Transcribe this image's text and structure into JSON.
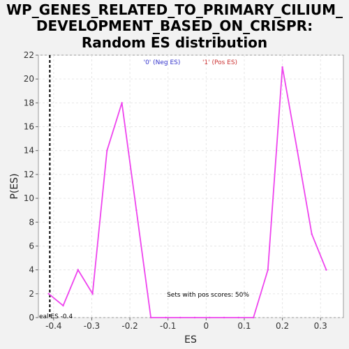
{
  "chart_data": {
    "type": "line",
    "title_lines": [
      "WP_GENES_RELATED_TO_PRIMARY_CILIUM_",
      "DEVELOPMENT_BASED_ON_CRISPR:",
      "Random ES distribution"
    ],
    "xlabel": "ES",
    "ylabel": "P(ES)",
    "xlim": [
      -0.44,
      0.36
    ],
    "ylim": [
      0,
      22
    ],
    "x_ticks": [
      -0.4,
      -0.3,
      -0.2,
      -0.1,
      0.0,
      0.1,
      0.2,
      0.3
    ],
    "x_tick_labels": [
      "-0.4",
      "-0.3",
      "-0.2",
      "-0.1",
      "0",
      "0.1",
      "0.2",
      "0.3"
    ],
    "y_ticks": [
      0,
      2,
      4,
      6,
      8,
      10,
      12,
      14,
      16,
      18,
      20,
      22
    ],
    "y_tick_labels": [
      "0",
      "2",
      "4",
      "6",
      "8",
      "10",
      "12",
      "14",
      "16",
      "18",
      "20",
      "22"
    ],
    "grid": true,
    "legend": [
      {
        "label": "'0' (Neg ES)",
        "color": "#3333cc"
      },
      {
        "label": "'1' (Pos ES)",
        "color": "#cc3333"
      }
    ],
    "series": [
      {
        "color": "#ee44ee",
        "x": [
          -0.413,
          -0.375,
          -0.336,
          -0.298,
          -0.26,
          -0.221,
          -0.183,
          -0.145,
          -0.106,
          -0.068,
          -0.03,
          0.009,
          0.047,
          0.085,
          0.124,
          0.162,
          0.2,
          0.239,
          0.277,
          0.315
        ],
        "y": [
          2,
          1,
          4,
          2,
          14,
          18,
          9,
          0,
          0,
          0,
          0,
          0,
          0,
          0,
          0,
          4,
          21,
          14,
          7,
          4
        ]
      }
    ],
    "real_es": {
      "x": -0.41,
      "label": "eal ES -0.4"
    },
    "annotation": "Sets with pos scores: 50%"
  }
}
